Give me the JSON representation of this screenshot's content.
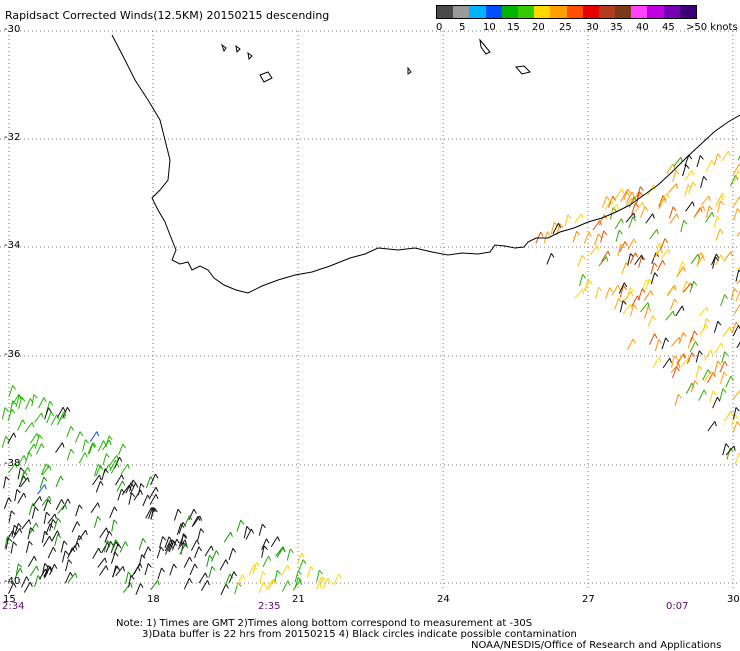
{
  "title": "Rapidsact Corrected Winds(12.5KM) 20150215 descending",
  "legend": {
    "labels": [
      "0",
      "5",
      "10",
      "15",
      "20",
      "25",
      "30",
      "35",
      "40",
      "45",
      ">50 knots"
    ],
    "colors": [
      "#4a4a4a",
      "#9a9a9a",
      "#00b4ff",
      "#0050ff",
      "#00b400",
      "#33cc00",
      "#ffd800",
      "#ffa000",
      "#ff5000",
      "#e80000",
      "#b43c1e",
      "#7a3a1a",
      "#ff40ff",
      "#c000e0",
      "#7800b4",
      "#3c0078"
    ]
  },
  "axes": {
    "lat_labels": [
      "-30",
      "-32",
      "-34",
      "-36",
      "-38",
      "-40"
    ],
    "lon_labels": [
      "15",
      "18",
      "21",
      "24",
      "27",
      "30"
    ]
  },
  "times": [
    "2:34",
    "2:35",
    "0:07"
  ],
  "notes": {
    "line1": "Note: 1) Times are GMT 2)Times along bottom correspond to measurement at -30S",
    "line2": "3)Data buffer is 22 hrs from 20150215 4) Black circles indicate possible contamination",
    "line3": "NOAA/NESDIS/Office of Research and Applications"
  }
}
